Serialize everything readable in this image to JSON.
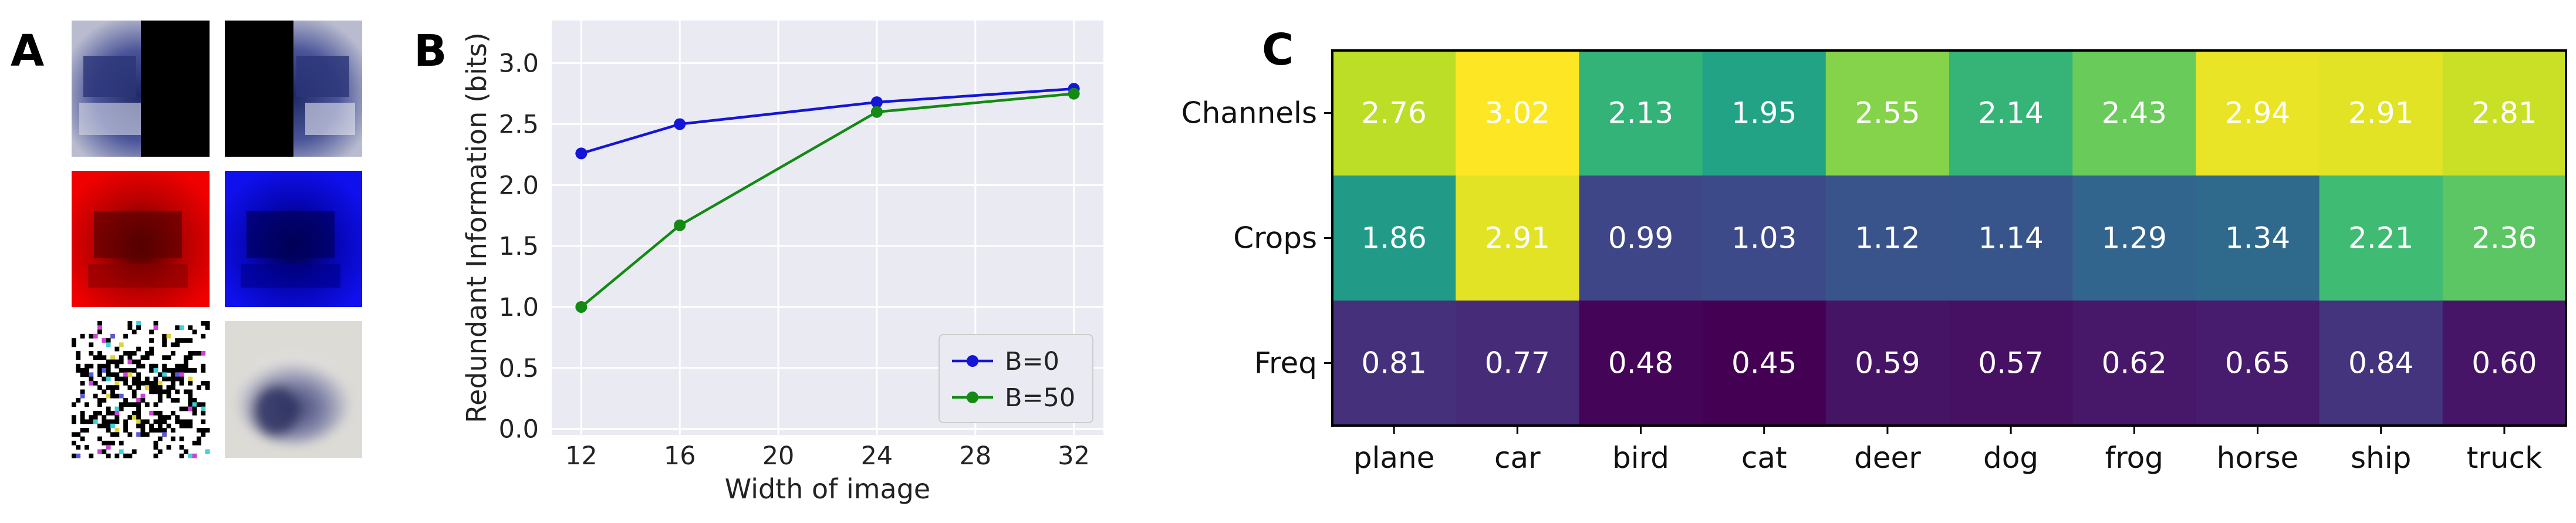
{
  "panel_labels": {
    "a": "A",
    "b": "B",
    "c": "C"
  },
  "panel_a": {
    "images": [
      {
        "name": "car-left-half-masked"
      },
      {
        "name": "car-right-half-masked"
      },
      {
        "name": "car-red-channel"
      },
      {
        "name": "car-blue-channel"
      },
      {
        "name": "car-high-frequency"
      },
      {
        "name": "car-low-frequency"
      }
    ],
    "colors": {
      "red": "#e60000",
      "blue": "#0b0bd8"
    }
  },
  "chart_data": [
    {
      "type": "line",
      "panel": "B",
      "title": "",
      "xlabel": "Width of image",
      "ylabel": "Redundant Information (bits)",
      "x_ticks": [
        12,
        16,
        20,
        24,
        28,
        32
      ],
      "y_ticks": [
        "0.0",
        "0.5",
        "1.0",
        "1.5",
        "2.0",
        "2.5",
        "3.0"
      ],
      "y_tick_values": [
        0,
        0.5,
        1.0,
        1.5,
        2.0,
        2.5,
        3.0
      ],
      "xlim": [
        10.8,
        33.2
      ],
      "ylim": [
        -0.05,
        3.35
      ],
      "grid": true,
      "legend_position": "lower-right",
      "series": [
        {
          "name": "B=0",
          "color": "#1515d8",
          "x": [
            12,
            16,
            24,
            32
          ],
          "values": [
            2.26,
            2.5,
            2.68,
            2.79
          ]
        },
        {
          "name": "B=50",
          "color": "#138a13",
          "x": [
            12,
            16,
            24,
            32
          ],
          "values": [
            1.0,
            1.67,
            2.6,
            2.75
          ]
        }
      ]
    },
    {
      "type": "heatmap",
      "panel": "C",
      "title": "",
      "colormap": "viridis",
      "vmin": 0.45,
      "vmax": 3.02,
      "columns": [
        "plane",
        "car",
        "bird",
        "cat",
        "deer",
        "dog",
        "frog",
        "horse",
        "ship",
        "truck"
      ],
      "rows": [
        "Channels",
        "Crops",
        "Freq"
      ],
      "values": [
        [
          2.76,
          3.02,
          2.13,
          1.95,
          2.55,
          2.14,
          2.43,
          2.94,
          2.91,
          2.81
        ],
        [
          1.86,
          2.91,
          0.99,
          1.03,
          1.12,
          1.14,
          1.29,
          1.34,
          2.21,
          2.36
        ],
        [
          0.81,
          0.77,
          0.48,
          0.45,
          0.59,
          0.57,
          0.62,
          0.65,
          0.84,
          0.6
        ]
      ],
      "value_labels": [
        [
          "2.76",
          "3.02",
          "2.13",
          "1.95",
          "2.55",
          "2.14",
          "2.43",
          "2.94",
          "2.91",
          "2.81"
        ],
        [
          "1.86",
          "2.91",
          "0.99",
          "1.03",
          "1.12",
          "1.14",
          "1.29",
          "1.34",
          "2.21",
          "2.36"
        ],
        [
          "0.81",
          "0.77",
          "0.48",
          "0.45",
          "0.59",
          "0.57",
          "0.62",
          "0.65",
          "0.84",
          "0.60"
        ]
      ]
    }
  ]
}
